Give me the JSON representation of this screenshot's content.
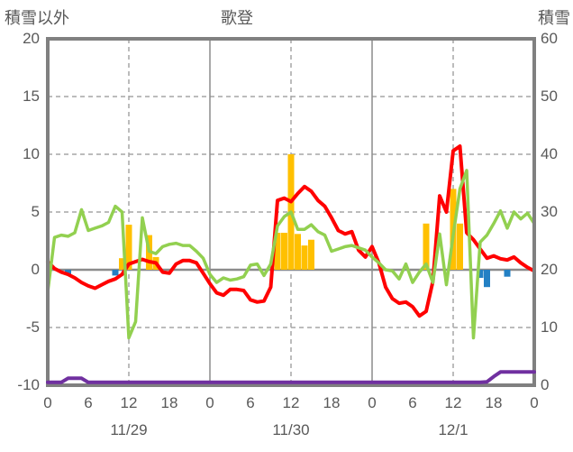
{
  "header": {
    "left_axis_title": "積雪以外",
    "chart_title": "歌登",
    "right_axis_title": "積雪"
  },
  "chart_data": {
    "type": "mixed",
    "title": "歌登",
    "x_axis": {
      "unit": "hour",
      "total_hours": 72,
      "tick_hours": [
        0,
        6,
        12,
        18,
        24,
        30,
        36,
        42,
        48,
        54,
        60,
        66,
        72
      ],
      "tick_labels": [
        "0",
        "6",
        "12",
        "18",
        "0",
        "6",
        "12",
        "18",
        "0",
        "6",
        "12",
        "18",
        "0"
      ],
      "date_labels": [
        {
          "label": "11/29",
          "center_hour": 12
        },
        {
          "label": "11/30",
          "center_hour": 36
        },
        {
          "label": "12/1",
          "center_hour": 60
        }
      ],
      "noon_dashed_gridline_hours": [
        12,
        36,
        60
      ],
      "day_boundary_hours": [
        24,
        48
      ]
    },
    "left_axis": {
      "title": "積雪以外",
      "min": -10,
      "max": 20,
      "ticks": [
        "20",
        "15",
        "10",
        "5",
        "0",
        "-5",
        "-10"
      ],
      "tick_values": [
        20,
        15,
        10,
        5,
        0,
        -5,
        -10
      ],
      "dashed_gridlines": [
        15,
        10,
        5,
        -5
      ],
      "zero_line": 0
    },
    "right_axis": {
      "title": "積雪",
      "min": 0,
      "max": 60,
      "ticks": [
        "60",
        "50",
        "40",
        "30",
        "20",
        "10",
        "0"
      ],
      "tick_values": [
        60,
        50,
        40,
        30,
        20,
        10,
        0
      ]
    },
    "series": [
      {
        "name": "orange-bars",
        "type": "bar",
        "axis": "left",
        "color": "#ffc000",
        "bars": [
          {
            "hour": 11,
            "value": 1.0
          },
          {
            "hour": 12,
            "value": 3.9
          },
          {
            "hour": 15,
            "value": 3.0
          },
          {
            "hour": 16,
            "value": 1.1
          },
          {
            "hour": 34,
            "value": 3.2
          },
          {
            "hour": 35,
            "value": 3.2
          },
          {
            "hour": 36,
            "value": 10.0
          },
          {
            "hour": 37,
            "value": 3.1
          },
          {
            "hour": 38,
            "value": 2.1
          },
          {
            "hour": 39,
            "value": 2.6
          },
          {
            "hour": 56,
            "value": 4.0
          },
          {
            "hour": 60,
            "value": 7.0
          },
          {
            "hour": 61,
            "value": 4.0
          }
        ]
      },
      {
        "name": "blue-bars",
        "type": "bar",
        "axis": "left",
        "color": "#2380c4",
        "bars": [
          {
            "hour": 3,
            "value": -0.4
          },
          {
            "hour": 10,
            "value": -0.5
          },
          {
            "hour": 64,
            "value": -0.7
          },
          {
            "hour": 65,
            "value": -1.5
          },
          {
            "hour": 68,
            "value": -0.6
          }
        ]
      },
      {
        "name": "red-line",
        "type": "line",
        "axis": "left",
        "color": "#ff0000",
        "width": 4,
        "values": [
          0.7,
          0.1,
          -0.2,
          -0.4,
          -0.7,
          -1.1,
          -1.4,
          -1.6,
          -1.3,
          -1.0,
          -0.8,
          -0.4,
          0.5,
          0.7,
          0.9,
          0.7,
          0.6,
          -0.2,
          -0.3,
          0.5,
          0.8,
          0.8,
          0.6,
          -0.3,
          -1.2,
          -2.0,
          -2.2,
          -1.7,
          -1.7,
          -1.8,
          -2.6,
          -2.8,
          -2.7,
          -1.5,
          6.0,
          6.2,
          5.9,
          6.6,
          7.2,
          6.8,
          6.0,
          5.5,
          4.5,
          3.4,
          3.1,
          3.3,
          1.7,
          1.1,
          2.0,
          0.6,
          -1.5,
          -2.5,
          -2.9,
          -2.8,
          -3.2,
          -4.0,
          -3.6,
          -1.0,
          6.4,
          5.0,
          10.3,
          10.7,
          3.2,
          2.6,
          1.8,
          1.0,
          1.2,
          0.95,
          0.85,
          1.1,
          0.6,
          0.2,
          -0.1
        ]
      },
      {
        "name": "green-line",
        "type": "line",
        "axis": "left",
        "color": "#92d050",
        "width": 3.5,
        "values": [
          -1.9,
          2.8,
          3.0,
          2.9,
          3.2,
          5.2,
          3.4,
          3.6,
          3.8,
          4.1,
          5.5,
          5.0,
          -5.9,
          -4.5,
          4.5,
          1.6,
          1.4,
          2.0,
          2.2,
          2.3,
          2.1,
          2.1,
          1.6,
          1.0,
          -0.4,
          -1.1,
          -0.7,
          -0.9,
          -0.8,
          -0.6,
          0.4,
          0.5,
          -0.5,
          0.5,
          3.8,
          4.6,
          5.0,
          3.5,
          3.5,
          3.9,
          3.3,
          3.0,
          1.6,
          1.8,
          2.0,
          2.1,
          1.9,
          1.7,
          1.1,
          0.6,
          0.0,
          -0.1,
          -0.8,
          0.5,
          -1.1,
          -0.2,
          0.5,
          -1.1,
          3.1,
          -1.3,
          3.0,
          7.0,
          8.6,
          -5.9,
          2.4,
          3.0,
          4.0,
          5.1,
          3.6,
          5.0,
          4.4,
          4.9,
          4.0
        ]
      },
      {
        "name": "purple-line",
        "type": "line",
        "axis": "right",
        "color": "#7030a0",
        "width": 4,
        "values": [
          0.5,
          0.5,
          0.5,
          1.2,
          1.2,
          1.2,
          0.5,
          0.5,
          0.5,
          0.5,
          0.5,
          0.5,
          0.5,
          0.5,
          0.5,
          0.5,
          0.5,
          0.5,
          0.5,
          0.5,
          0.5,
          0.5,
          0.5,
          0.5,
          0.5,
          0.5,
          0.5,
          0.5,
          0.5,
          0.5,
          0.5,
          0.5,
          0.5,
          0.5,
          0.5,
          0.5,
          0.5,
          0.5,
          0.5,
          0.5,
          0.5,
          0.5,
          0.5,
          0.5,
          0.5,
          0.5,
          0.5,
          0.5,
          0.5,
          0.5,
          0.5,
          0.5,
          0.5,
          0.5,
          0.5,
          0.5,
          0.5,
          0.5,
          0.5,
          0.5,
          0.5,
          0.5,
          0.5,
          0.5,
          0.5,
          0.6,
          1.5,
          2.3,
          2.3,
          2.3,
          2.3,
          2.3,
          2.3
        ]
      }
    ],
    "style": {
      "frame_color": "#808080",
      "grid_dashed_color": "#a6a6a6",
      "solid_line_color": "#8c8c8c",
      "text_color": "#595959",
      "background": "#ffffff"
    }
  }
}
